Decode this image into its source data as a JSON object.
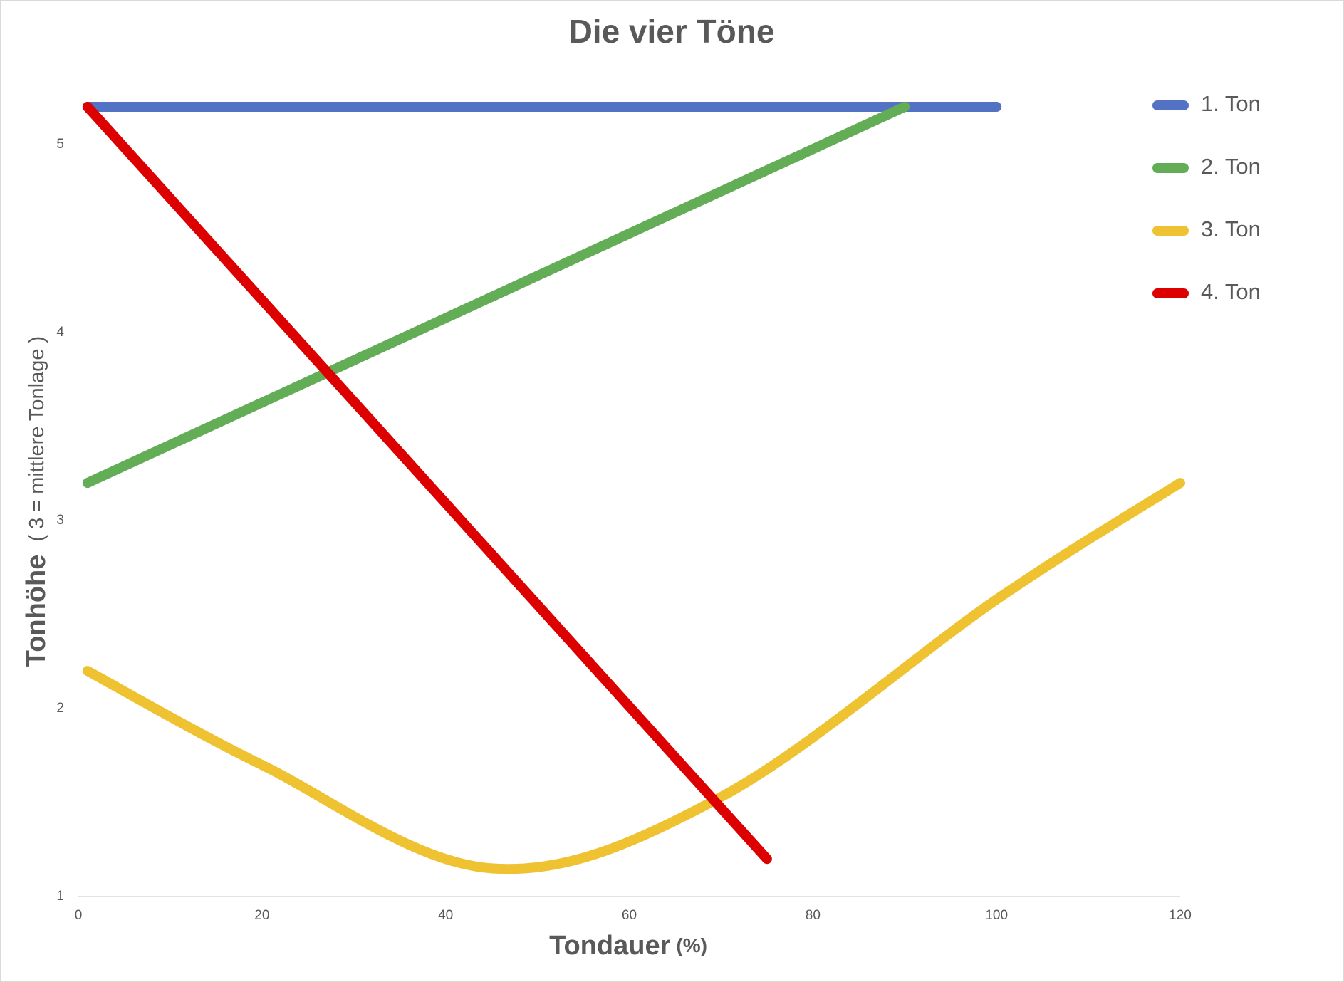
{
  "chart_data": {
    "type": "line",
    "title": "Die vier Töne",
    "x_label": "Tondauer",
    "x_label_unit": "(%)",
    "y_label": "Tonhöhe",
    "y_label_note": "( 3 = mittlere Tonlage )",
    "xlim": [
      0,
      120
    ],
    "xticks": [
      0,
      20,
      40,
      60,
      80,
      100,
      120
    ],
    "ylim": [
      1,
      5.2
    ],
    "yticks": [
      1,
      2,
      3,
      4,
      5
    ],
    "smooth": true,
    "legend": "right",
    "series": [
      {
        "name": "1. Ton",
        "color": "#5472c4",
        "x": [
          1,
          100
        ],
        "values": [
          5.2,
          5.2
        ]
      },
      {
        "name": "2. Ton",
        "color": "#63ad56",
        "x": [
          1,
          90
        ],
        "values": [
          3.2,
          5.2
        ]
      },
      {
        "name": "3. Ton",
        "color": "#efc232",
        "x": [
          1,
          20,
          45,
          70,
          100,
          120
        ],
        "values": [
          2.2,
          1.7,
          1.15,
          1.53,
          2.58,
          3.2
        ]
      },
      {
        "name": "4. Ton",
        "color": "#dd0000",
        "x": [
          1,
          75
        ],
        "values": [
          5.2,
          1.2
        ]
      }
    ]
  }
}
